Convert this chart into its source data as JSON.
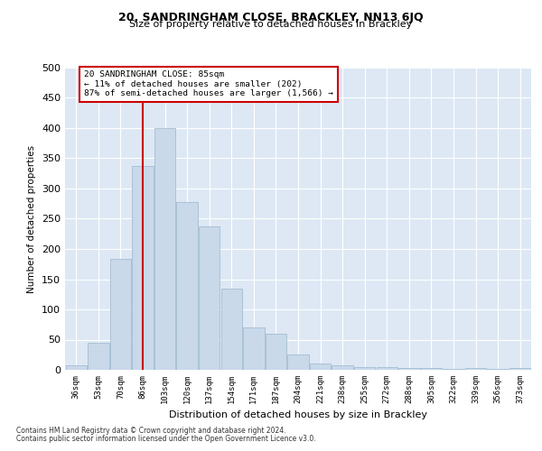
{
  "title": "20, SANDRINGHAM CLOSE, BRACKLEY, NN13 6JQ",
  "subtitle": "Size of property relative to detached houses in Brackley",
  "xlabel": "Distribution of detached houses by size in Brackley",
  "ylabel": "Number of detached properties",
  "footnote1": "Contains HM Land Registry data © Crown copyright and database right 2024.",
  "footnote2": "Contains public sector information licensed under the Open Government Licence v3.0.",
  "property_label": "20 SANDRINGHAM CLOSE: 85sqm",
  "annotation_line1": "← 11% of detached houses are smaller (202)",
  "annotation_line2": "87% of semi-detached houses are larger (1,566) →",
  "bar_color": "#c9d9ea",
  "bar_edge_color": "#9ab5cc",
  "vline_color": "#cc0000",
  "annotation_box_edge_color": "#cc0000",
  "background_color": "#dde8f4",
  "grid_color": "#ffffff",
  "categories": [
    "36sqm",
    "53sqm",
    "70sqm",
    "86sqm",
    "103sqm",
    "120sqm",
    "137sqm",
    "154sqm",
    "171sqm",
    "187sqm",
    "204sqm",
    "221sqm",
    "238sqm",
    "255sqm",
    "272sqm",
    "288sqm",
    "305sqm",
    "322sqm",
    "339sqm",
    "356sqm",
    "373sqm"
  ],
  "bar_heights": [
    8,
    45,
    183,
    338,
    400,
    278,
    237,
    135,
    70,
    60,
    25,
    10,
    7,
    5,
    5,
    3,
    3,
    2,
    3,
    2,
    3
  ],
  "vline_position": 3.0,
  "ylim": [
    0,
    500
  ],
  "yticks": [
    0,
    50,
    100,
    150,
    200,
    250,
    300,
    350,
    400,
    450,
    500
  ]
}
